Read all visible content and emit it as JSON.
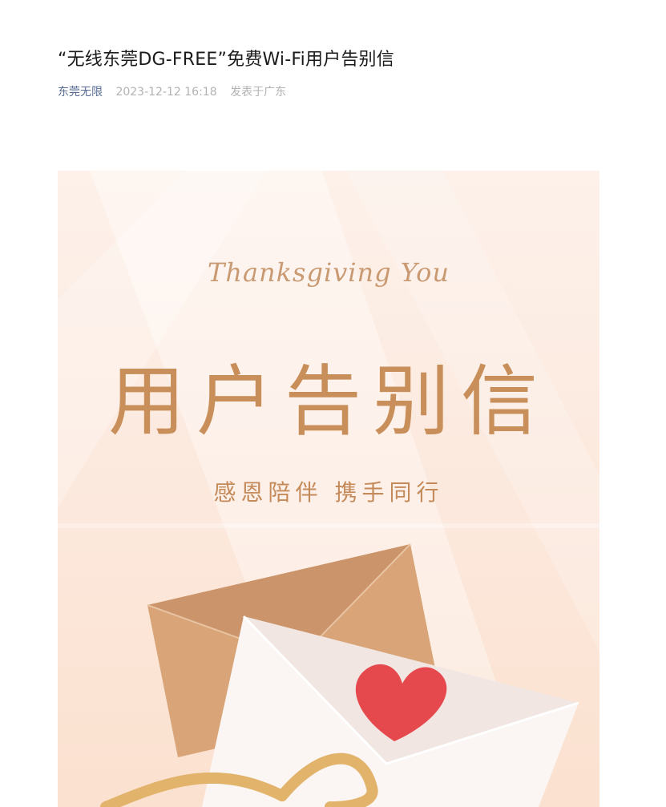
{
  "article": {
    "title": "“无线东莞DG-FREE”免费Wi-Fi用户告别信",
    "author": "东莞无限",
    "datetime": "2023-12-12 16:18",
    "location": "发表于广东"
  },
  "poster": {
    "script_text": "Thanksgiving You",
    "headline": "用户告别信",
    "subtitle": "感恩陪伴 携手同行",
    "colors": {
      "background": "#fdf1ea",
      "headline": "#c98f5a",
      "envelope_back": "#d9a679",
      "envelope_front": "#fbf6f4",
      "heart": "#e5484d",
      "ribbon": "#e2b36a"
    },
    "icons": [
      "heart-icon",
      "envelope-icon",
      "ribbon-icon"
    ]
  }
}
